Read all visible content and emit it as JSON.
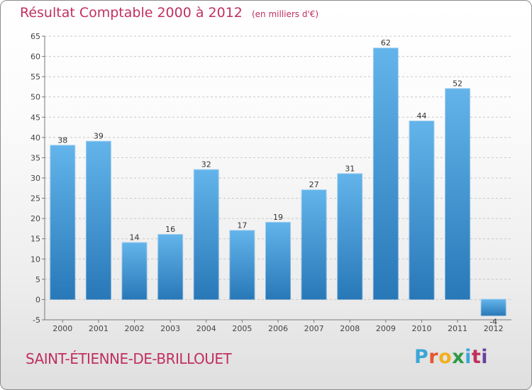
{
  "header": {
    "title": "Résultat Comptable 2000 à 2012",
    "subtitle": "(en milliers d'€)"
  },
  "footer": {
    "place": "SAINT-ÉTIENNE-DE-BRILLOUET",
    "logo_letters": [
      "P",
      "r",
      "o",
      "x",
      "i",
      "t",
      "i"
    ],
    "logo_colors": [
      "#3aa6d8",
      "#e4572e",
      "#f2b01e",
      "#2f9a46",
      "#3aa6d8",
      "#c0305f",
      "#6a3fa0"
    ]
  },
  "colors": {
    "bar_top": "#62b4ea",
    "bar_bottom": "#2878b8",
    "accent": "#c0305f",
    "grid": "#c8c8c8"
  },
  "chart_data": {
    "type": "bar",
    "categories": [
      "2000",
      "2001",
      "2002",
      "2003",
      "2004",
      "2005",
      "2006",
      "2007",
      "2008",
      "2009",
      "2010",
      "2011",
      "2012"
    ],
    "values": [
      38,
      39,
      14,
      16,
      32,
      17,
      19,
      27,
      31,
      62,
      44,
      52,
      -4
    ],
    "data_labels": [
      "38",
      "39",
      "14",
      "16",
      "32",
      "17",
      "19",
      "27",
      "31",
      "62",
      "44",
      "52",
      "-4"
    ],
    "title": "Résultat Comptable 2000 à 2012",
    "subtitle": "(en milliers d'€)",
    "xlabel": "",
    "ylabel": "",
    "ylim": [
      -5,
      65
    ],
    "yticks": [
      -5,
      0,
      5,
      10,
      15,
      20,
      25,
      30,
      35,
      40,
      45,
      50,
      55,
      60,
      65
    ],
    "grid": true
  }
}
